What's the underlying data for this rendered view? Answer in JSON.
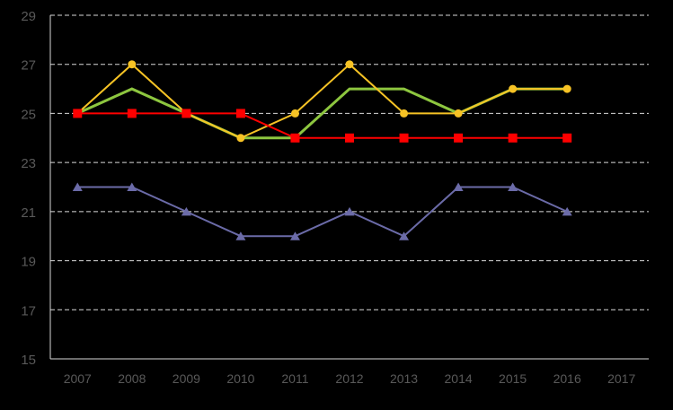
{
  "chart_data": {
    "type": "line",
    "categories": [
      "2007",
      "2008",
      "2009",
      "2010",
      "2011",
      "2012",
      "2013",
      "2014",
      "2015",
      "2016",
      "2017"
    ],
    "y_ticks": [
      "15",
      "17",
      "19",
      "21",
      "23",
      "25",
      "27",
      "29"
    ],
    "ylim": [
      15,
      29
    ],
    "grid": "horizontal dashed",
    "legend": "none",
    "title": "",
    "xlabel": "",
    "ylabel": "",
    "series": [
      {
        "values": [
          25,
          26,
          25,
          24,
          24,
          26,
          26,
          25,
          26,
          26,
          null
        ],
        "color": "#8DC63F",
        "marker": "none"
      },
      {
        "values": [
          25,
          27,
          25,
          24,
          25,
          27,
          25,
          25,
          26,
          26,
          null
        ],
        "color": "#F7C325",
        "marker": "circle"
      },
      {
        "values": [
          25,
          25,
          25,
          25,
          24,
          24,
          24,
          24,
          24,
          24,
          null
        ],
        "color": "#FF0000",
        "marker": "square"
      },
      {
        "values": [
          22,
          22,
          21,
          20,
          20,
          21,
          20,
          22,
          22,
          21,
          null
        ],
        "color": "#6B6BA8",
        "marker": "triangle"
      }
    ],
    "colors": {
      "background": "#000000",
      "gridline": "#D9D9D9",
      "tick_label": "#595959",
      "axis": "#D9D9D9"
    }
  }
}
